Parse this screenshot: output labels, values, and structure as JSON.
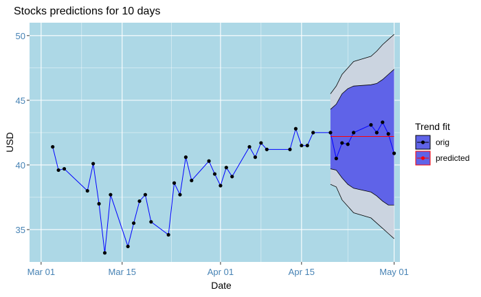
{
  "chart_data": {
    "type": "line",
    "title": "Stocks predictions for 10 days",
    "xlabel": "Date",
    "ylabel": "USD",
    "xlim": [
      "2020-02-28",
      "2020-05-02"
    ],
    "ylim": [
      32.5,
      51.0
    ],
    "x_ticks": [
      {
        "date": "2020-03-01",
        "label": "Mar 01"
      },
      {
        "date": "2020-03-15",
        "label": "Mar 15"
      },
      {
        "date": "2020-04-01",
        "label": "Apr 01"
      },
      {
        "date": "2020-04-15",
        "label": "Apr 15"
      },
      {
        "date": "2020-05-01",
        "label": "May 01"
      }
    ],
    "y_ticks": [
      35,
      40,
      45,
      50
    ],
    "grid": true,
    "background": "#add8e6",
    "legend": {
      "title": "Trend fit",
      "position": "right",
      "entries": [
        {
          "label": "orig",
          "fill": "#5f63e8",
          "border": "#000000",
          "point": "#000000"
        },
        {
          "label": "predicted",
          "fill": "#5f63e8",
          "border": "#ff0000",
          "point": "#ff0000"
        }
      ]
    },
    "series": [
      {
        "name": "orig",
        "color": "#0000ff",
        "point_color": "#000000",
        "x": [
          "2020-03-03",
          "2020-03-04",
          "2020-03-05",
          "2020-03-09",
          "2020-03-10",
          "2020-03-11",
          "2020-03-12",
          "2020-03-13",
          "2020-03-16",
          "2020-03-17",
          "2020-03-18",
          "2020-03-19",
          "2020-03-20",
          "2020-03-23",
          "2020-03-24",
          "2020-03-25",
          "2020-03-26",
          "2020-03-27",
          "2020-03-30",
          "2020-03-31",
          "2020-04-01",
          "2020-04-02",
          "2020-04-03",
          "2020-04-06",
          "2020-04-07",
          "2020-04-08",
          "2020-04-09",
          "2020-04-13",
          "2020-04-14",
          "2020-04-15",
          "2020-04-16",
          "2020-04-17",
          "2020-04-20",
          "2020-04-21",
          "2020-04-22",
          "2020-04-23",
          "2020-04-24",
          "2020-04-27",
          "2020-04-28",
          "2020-04-29",
          "2020-04-30",
          "2020-05-01"
        ],
        "values": [
          41.4,
          39.6,
          39.7,
          38.0,
          40.1,
          37.0,
          33.2,
          37.7,
          33.7,
          35.5,
          37.2,
          37.7,
          35.6,
          34.6,
          38.6,
          37.7,
          40.6,
          38.8,
          40.3,
          39.3,
          38.4,
          39.8,
          39.1,
          41.4,
          40.6,
          41.7,
          41.2,
          41.2,
          42.8,
          41.5,
          41.5,
          42.5,
          42.5,
          40.5,
          41.7,
          41.6,
          42.5,
          43.1,
          42.5,
          43.3,
          42.4,
          40.9
        ]
      },
      {
        "name": "predicted",
        "color": "#ff0000",
        "x": [
          "2020-04-20",
          "2020-05-01"
        ],
        "values": [
          42.2,
          42.2
        ]
      }
    ],
    "bands": [
      {
        "name": "outer",
        "fill": "#cbd4e0",
        "border": "#000000",
        "x": [
          "2020-04-20",
          "2020-04-21",
          "2020-04-22",
          "2020-04-23",
          "2020-04-24",
          "2020-04-27",
          "2020-04-28",
          "2020-04-29",
          "2020-04-30",
          "2020-05-01"
        ],
        "lower": [
          38.5,
          38.3,
          37.3,
          36.8,
          36.3,
          35.9,
          35.5,
          35.1,
          34.7,
          34.3
        ],
        "upper": [
          45.5,
          46.1,
          47.0,
          47.5,
          48.0,
          48.4,
          48.8,
          49.3,
          49.7,
          50.1
        ]
      },
      {
        "name": "inner",
        "fill": "#5f63e8",
        "border": "#000000",
        "x": [
          "2020-04-20",
          "2020-04-21",
          "2020-04-22",
          "2020-04-23",
          "2020-04-24",
          "2020-04-27",
          "2020-04-28",
          "2020-04-29",
          "2020-04-30",
          "2020-05-01"
        ],
        "lower": [
          39.7,
          39.6,
          39.0,
          38.5,
          38.2,
          37.9,
          37.6,
          37.2,
          36.9,
          36.9
        ],
        "upper": [
          44.3,
          44.7,
          45.5,
          45.9,
          46.1,
          46.2,
          46.3,
          46.6,
          47.0,
          47.4
        ]
      }
    ]
  }
}
